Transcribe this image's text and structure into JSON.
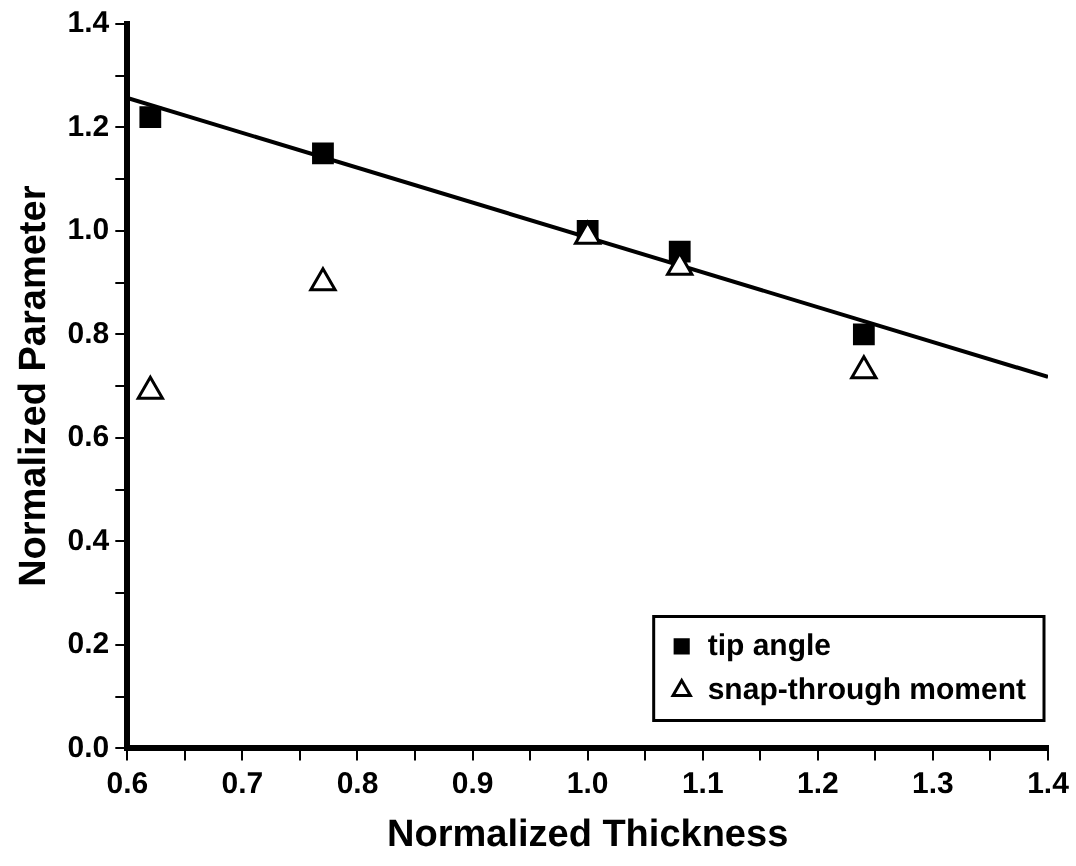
{
  "chart_data": {
    "type": "scatter",
    "xlabel": "Normalized Thickness",
    "ylabel": "Normalized Parameter",
    "xlim": [
      0.6,
      1.4
    ],
    "ylim": [
      0,
      1.4
    ],
    "xticks": [
      0.6,
      {
        "value": 0.65,
        "label": null
      },
      0.7,
      {
        "value": 0.75,
        "label": null
      },
      0.8,
      {
        "value": 0.85,
        "label": null
      },
      0.9,
      {
        "value": 0.95,
        "label": null
      },
      {
        "value": 1,
        "label": "1.0"
      },
      {
        "value": 1.05,
        "label": null
      },
      1.1,
      {
        "value": 1.15,
        "label": null
      },
      1.2,
      {
        "value": 1.25,
        "label": null
      },
      1.3,
      {
        "value": 1.35,
        "label": null
      },
      1.4
    ],
    "yticks": [
      {
        "value": 0,
        "label": "0.0"
      },
      {
        "value": 0.1,
        "label": null
      },
      0.2,
      {
        "value": 0.3,
        "label": null
      },
      0.4,
      {
        "value": 0.5,
        "label": null
      },
      0.6,
      {
        "value": 0.7,
        "label": null
      },
      0.8,
      {
        "value": 0.9,
        "label": null
      },
      {
        "value": 1,
        "label": "1.0"
      },
      {
        "value": 1.1,
        "label": null
      },
      1.2,
      {
        "value": 1.3,
        "label": null
      },
      1.4
    ],
    "grid": false,
    "legend": "bottom right",
    "series": [
      {
        "name": "tip angle",
        "color": "#000000",
        "marker": "square",
        "x": [
          0.62,
          0.77,
          1.0,
          1.08,
          1.24
        ],
        "values": [
          1.22,
          1.15,
          1.0,
          0.96,
          0.8
        ]
      },
      {
        "name": "snap-through moment",
        "color": "#000000",
        "marker": "triangle",
        "x": [
          0.62,
          0.77,
          1.0,
          1.08,
          1.24
        ],
        "values": [
          0.69,
          0.9,
          0.99,
          0.93,
          0.73
        ]
      },
      {
        "type": "line",
        "color": "#000000",
        "marker": "none",
        "line_style": "solid",
        "x": [
          0.6,
          1.4
        ],
        "values": [
          1.257,
          0.718
        ]
      }
    ]
  }
}
